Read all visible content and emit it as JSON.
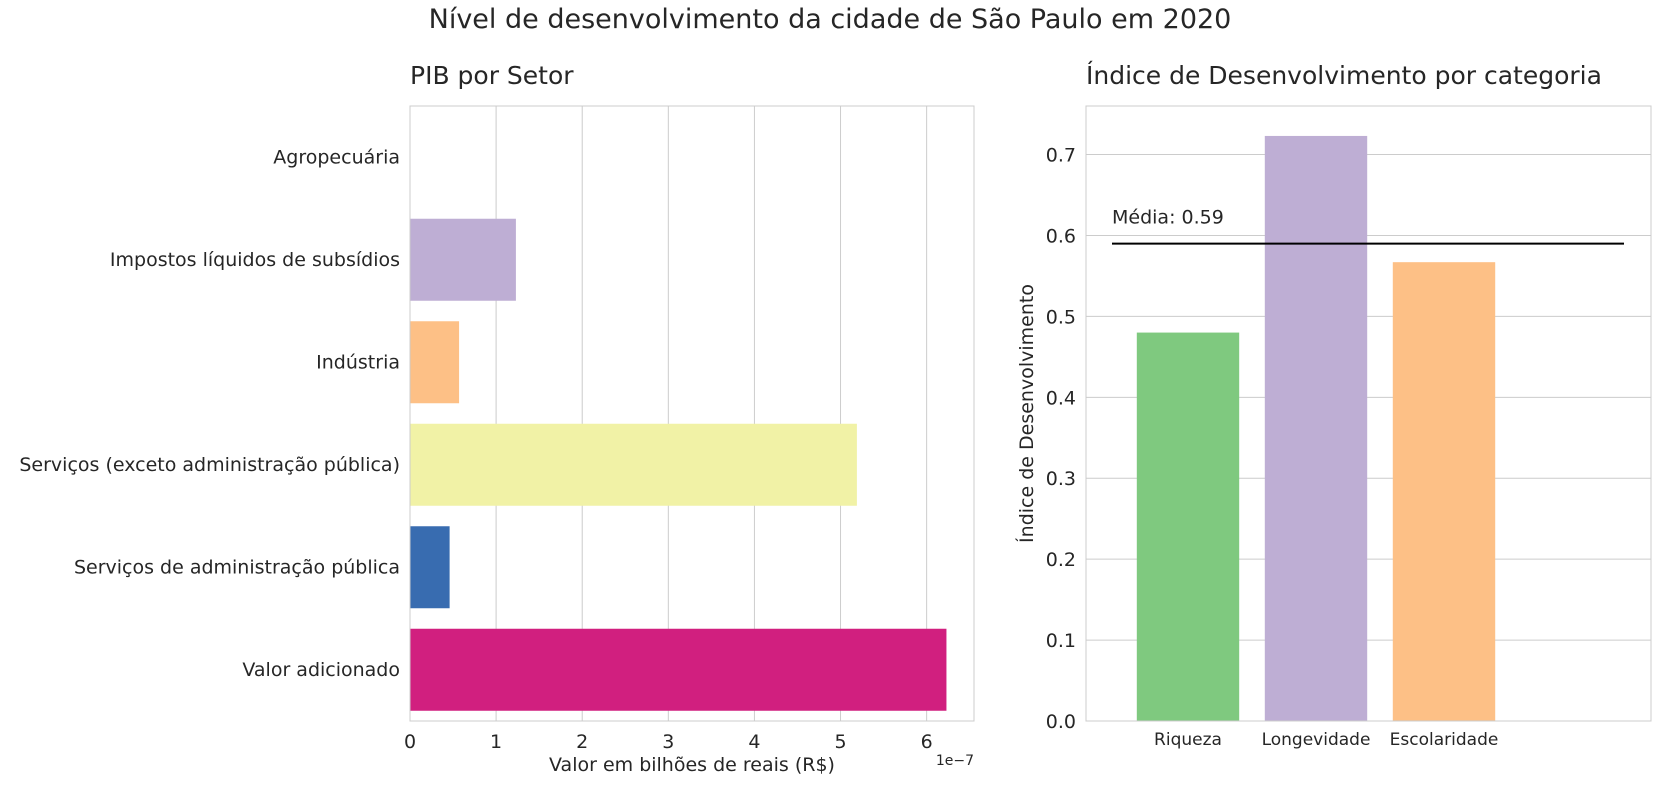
{
  "figure_title": "Nível de desenvolvimento da cidade de São Paulo em 2020",
  "chart_data": [
    {
      "type": "bar",
      "orientation": "horizontal",
      "title": "PIB por Setor",
      "xlabel": "Valor em bilhões de reais (R$)",
      "ylabel": "",
      "x_offset_text": "1e−7",
      "xlim": [
        0,
        6.55
      ],
      "x_ticks": [
        0,
        1,
        2,
        3,
        4,
        5,
        6
      ],
      "x_tick_labels": [
        "0",
        "1",
        "2",
        "3",
        "4",
        "5",
        "6"
      ],
      "categories": [
        "Agropecuária",
        "Impostos líquidos de subsídios",
        "Indústria",
        "Serviços (exceto administração pública)",
        "Serviços de administração pública",
        "Valor adicionado"
      ],
      "values": [
        0.0,
        1.23,
        0.57,
        5.19,
        0.46,
        6.23
      ],
      "value_scale": "1e-7",
      "colors": [
        "#7fc97f",
        "#beaed4",
        "#fdc086",
        "#f1f2a6",
        "#386cb0",
        "#d11f7f"
      ],
      "grid": "x"
    },
    {
      "type": "bar",
      "title": "Índice de Desenvolvimento por categoria",
      "xlabel": "",
      "ylabel": "Índice de Desenvolvimento",
      "ylim": [
        0,
        0.76
      ],
      "y_ticks": [
        0.0,
        0.1,
        0.2,
        0.3,
        0.4,
        0.5,
        0.6,
        0.7
      ],
      "y_tick_labels": [
        "0.0",
        "0.1",
        "0.2",
        "0.3",
        "0.4",
        "0.5",
        "0.6",
        "0.7"
      ],
      "categories": [
        "Riqueza",
        "Longevidade",
        "Escolaridade"
      ],
      "values": [
        0.48,
        0.723,
        0.567
      ],
      "colors": [
        "#7fc97f",
        "#beaed4",
        "#fdc086"
      ],
      "reference_line": {
        "value": 0.59,
        "label": "Média: 0.59",
        "color": "#000000"
      },
      "grid": "y"
    }
  ]
}
